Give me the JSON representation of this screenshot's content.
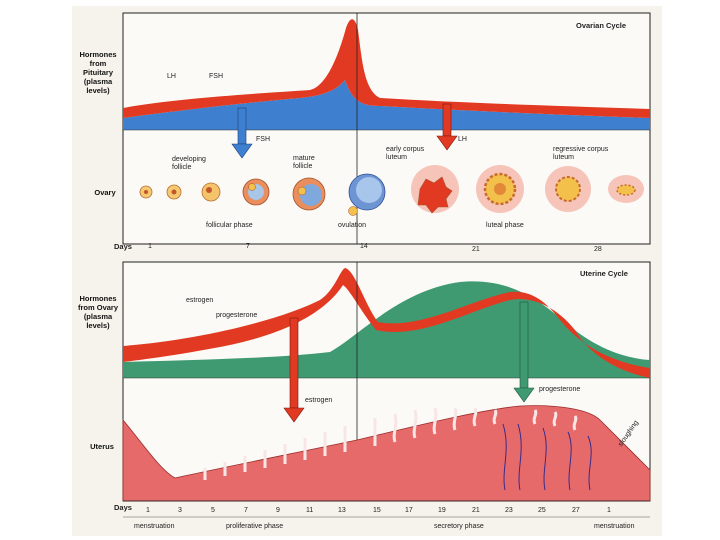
{
  "top_panel": {
    "title": "Ovarian Cycle",
    "hormones_label": "Hormones from Pituitary (plasma levels)",
    "lh_label": "LH",
    "fsh_label": "FSH",
    "fsh_arrow_label": "FSH",
    "lh_arrow_label": "LH",
    "ovary_label": "Ovary",
    "developing_follicle": "developing follicle",
    "mature_follicle": "mature follicle",
    "early_corpus_luteum": "early corpus luteum",
    "regressive_corpus_luteum": "regressive corpus luteum",
    "follicular_phase": "follicular phase",
    "ovulation": "ovulation",
    "luteal_phase": "luteal phase",
    "days_label": "Days",
    "days": [
      "1",
      "7",
      "14",
      "21",
      "28"
    ]
  },
  "bottom_panel": {
    "title": "Uterine Cycle",
    "hormones_label": "Hormones from Ovary (plasma levels)",
    "estrogen_label": "estrogen",
    "progesterone_label": "progesterone",
    "estrogen_arrow_label": "estrogen",
    "progesterone_arrow_label": "progesterone",
    "uterus_label": "Uterus",
    "sloughing_label": "sloughing",
    "days_label": "Days",
    "days": [
      "1",
      "3",
      "5",
      "7",
      "9",
      "11",
      "13",
      "15",
      "17",
      "19",
      "21",
      "23",
      "25",
      "27",
      "1"
    ],
    "menstruation_1": "menstruation",
    "proliferative_phase": "proliferative phase",
    "secretory_phase": "secretory phase",
    "menstruation_2": "menstruation"
  },
  "colors": {
    "blue": "#3f7fcf",
    "red": "#e23a22",
    "green": "#3f9a72",
    "tissue": "#e66a6a",
    "border": "#222222"
  }
}
